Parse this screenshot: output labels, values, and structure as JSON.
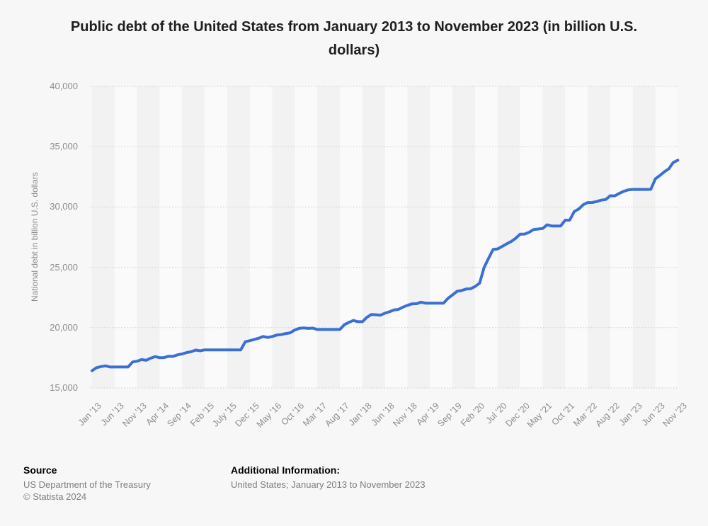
{
  "title": {
    "line1": "Public debt of the United States from January 2013 to November 2023 (in billion U.S.",
    "line2": "dollars)",
    "full": "Public debt of the United States from January 2013 to November 2023 (in billion U.S. dollars)"
  },
  "chart_data": {
    "type": "line",
    "title": "Public debt of the United States from January 2013 to November 2023 (in billion U.S. dollars)",
    "xlabel": "",
    "ylabel": "National debt in billion U.S. dollars",
    "ylim": [
      15000,
      40000
    ],
    "yticks": [
      15000,
      20000,
      25000,
      30000,
      35000,
      40000
    ],
    "ytick_labels": [
      "15,000",
      "20,000",
      "25,000",
      "30,000",
      "35,000",
      "40,000"
    ],
    "grid": "dotted-horizontal",
    "plot_bands": "alternating-vertical-per-tick-interval",
    "legend_position": "none",
    "x_start": "Jan 2013",
    "x_end": "Nov 2023",
    "x_step": "1 month",
    "x_tick_labels": [
      "Jan '13",
      "Jun '13",
      "Nov '13",
      "Apr '14",
      "Sep '14",
      "Feb '15",
      "July '15",
      "Dec '15",
      "May '16",
      "Oct '16",
      "Mar '17",
      "Aug '17",
      "Jan '18",
      "Jun '18",
      "Nov '18",
      "Apr '19",
      "Sep '19",
      "Feb '20",
      "Jul '20",
      "Dec '20",
      "May '21",
      "Oct '21",
      "Mar '22",
      "Aug '22",
      "Jan '23",
      "Jun '23",
      "Nov '23"
    ],
    "x_tick_month_index": [
      0,
      5,
      10,
      15,
      20,
      25,
      30,
      35,
      40,
      45,
      50,
      55,
      60,
      65,
      70,
      75,
      80,
      85,
      90,
      95,
      100,
      105,
      110,
      115,
      120,
      125,
      130
    ],
    "series": [
      {
        "name": "National debt in billion U.S. dollars",
        "color": "#3a6fd4",
        "values": [
          16433,
          16687,
          16771,
          16829,
          16735,
          16738,
          16738,
          16739,
          16738,
          17156,
          17217,
          17352,
          17293,
          17463,
          17601,
          17508,
          17517,
          17632,
          17618,
          17749,
          17824,
          17937,
          18005,
          18141,
          18082,
          18155,
          18152,
          18152,
          18153,
          18152,
          18152,
          18151,
          18151,
          18153,
          18827,
          18922,
          19012,
          19125,
          19265,
          19187,
          19265,
          19382,
          19427,
          19510,
          19573,
          19806,
          19948,
          19977,
          19937,
          19959,
          19846,
          19846,
          19846,
          19845,
          19845,
          19845,
          20245,
          20442,
          20590,
          20493,
          20494,
          20856,
          21090,
          21068,
          21032,
          21195,
          21313,
          21459,
          21516,
          21702,
          21850,
          21974,
          21983,
          22115,
          22028,
          22027,
          22026,
          22023,
          22023,
          22428,
          22719,
          23008,
          23076,
          23201,
          23224,
          23409,
          23687,
          24974,
          25746,
          26477,
          26525,
          26729,
          26945,
          27137,
          27407,
          27748,
          27756,
          27902,
          28133,
          28175,
          28218,
          28529,
          28427,
          28427,
          28429,
          28909,
          28908,
          29617,
          29827,
          30189,
          30372,
          30374,
          30449,
          30569,
          30622,
          30936,
          30929,
          31124,
          31305,
          31420,
          31455,
          31459,
          31458,
          31458,
          31465,
          32332,
          32609,
          32914,
          33167,
          33700,
          33878
        ]
      }
    ]
  },
  "colors": {
    "background": "#f7f7f7",
    "line": "#3a6fd4",
    "gridline": "#c9c9c9",
    "band_dark": "#f2f2f2",
    "band_light": "#fafafa",
    "axis_label": "#8c8c8c",
    "title_text": "#1f1f1f",
    "footer_gray": "#7d7d7d"
  },
  "footer": {
    "source_heading": "Source",
    "source_name": "US Department of the Treasury",
    "copyright": "© Statista 2024",
    "additional_heading": "Additional Information:",
    "additional_text": "United States; January 2013 to November 2023"
  }
}
